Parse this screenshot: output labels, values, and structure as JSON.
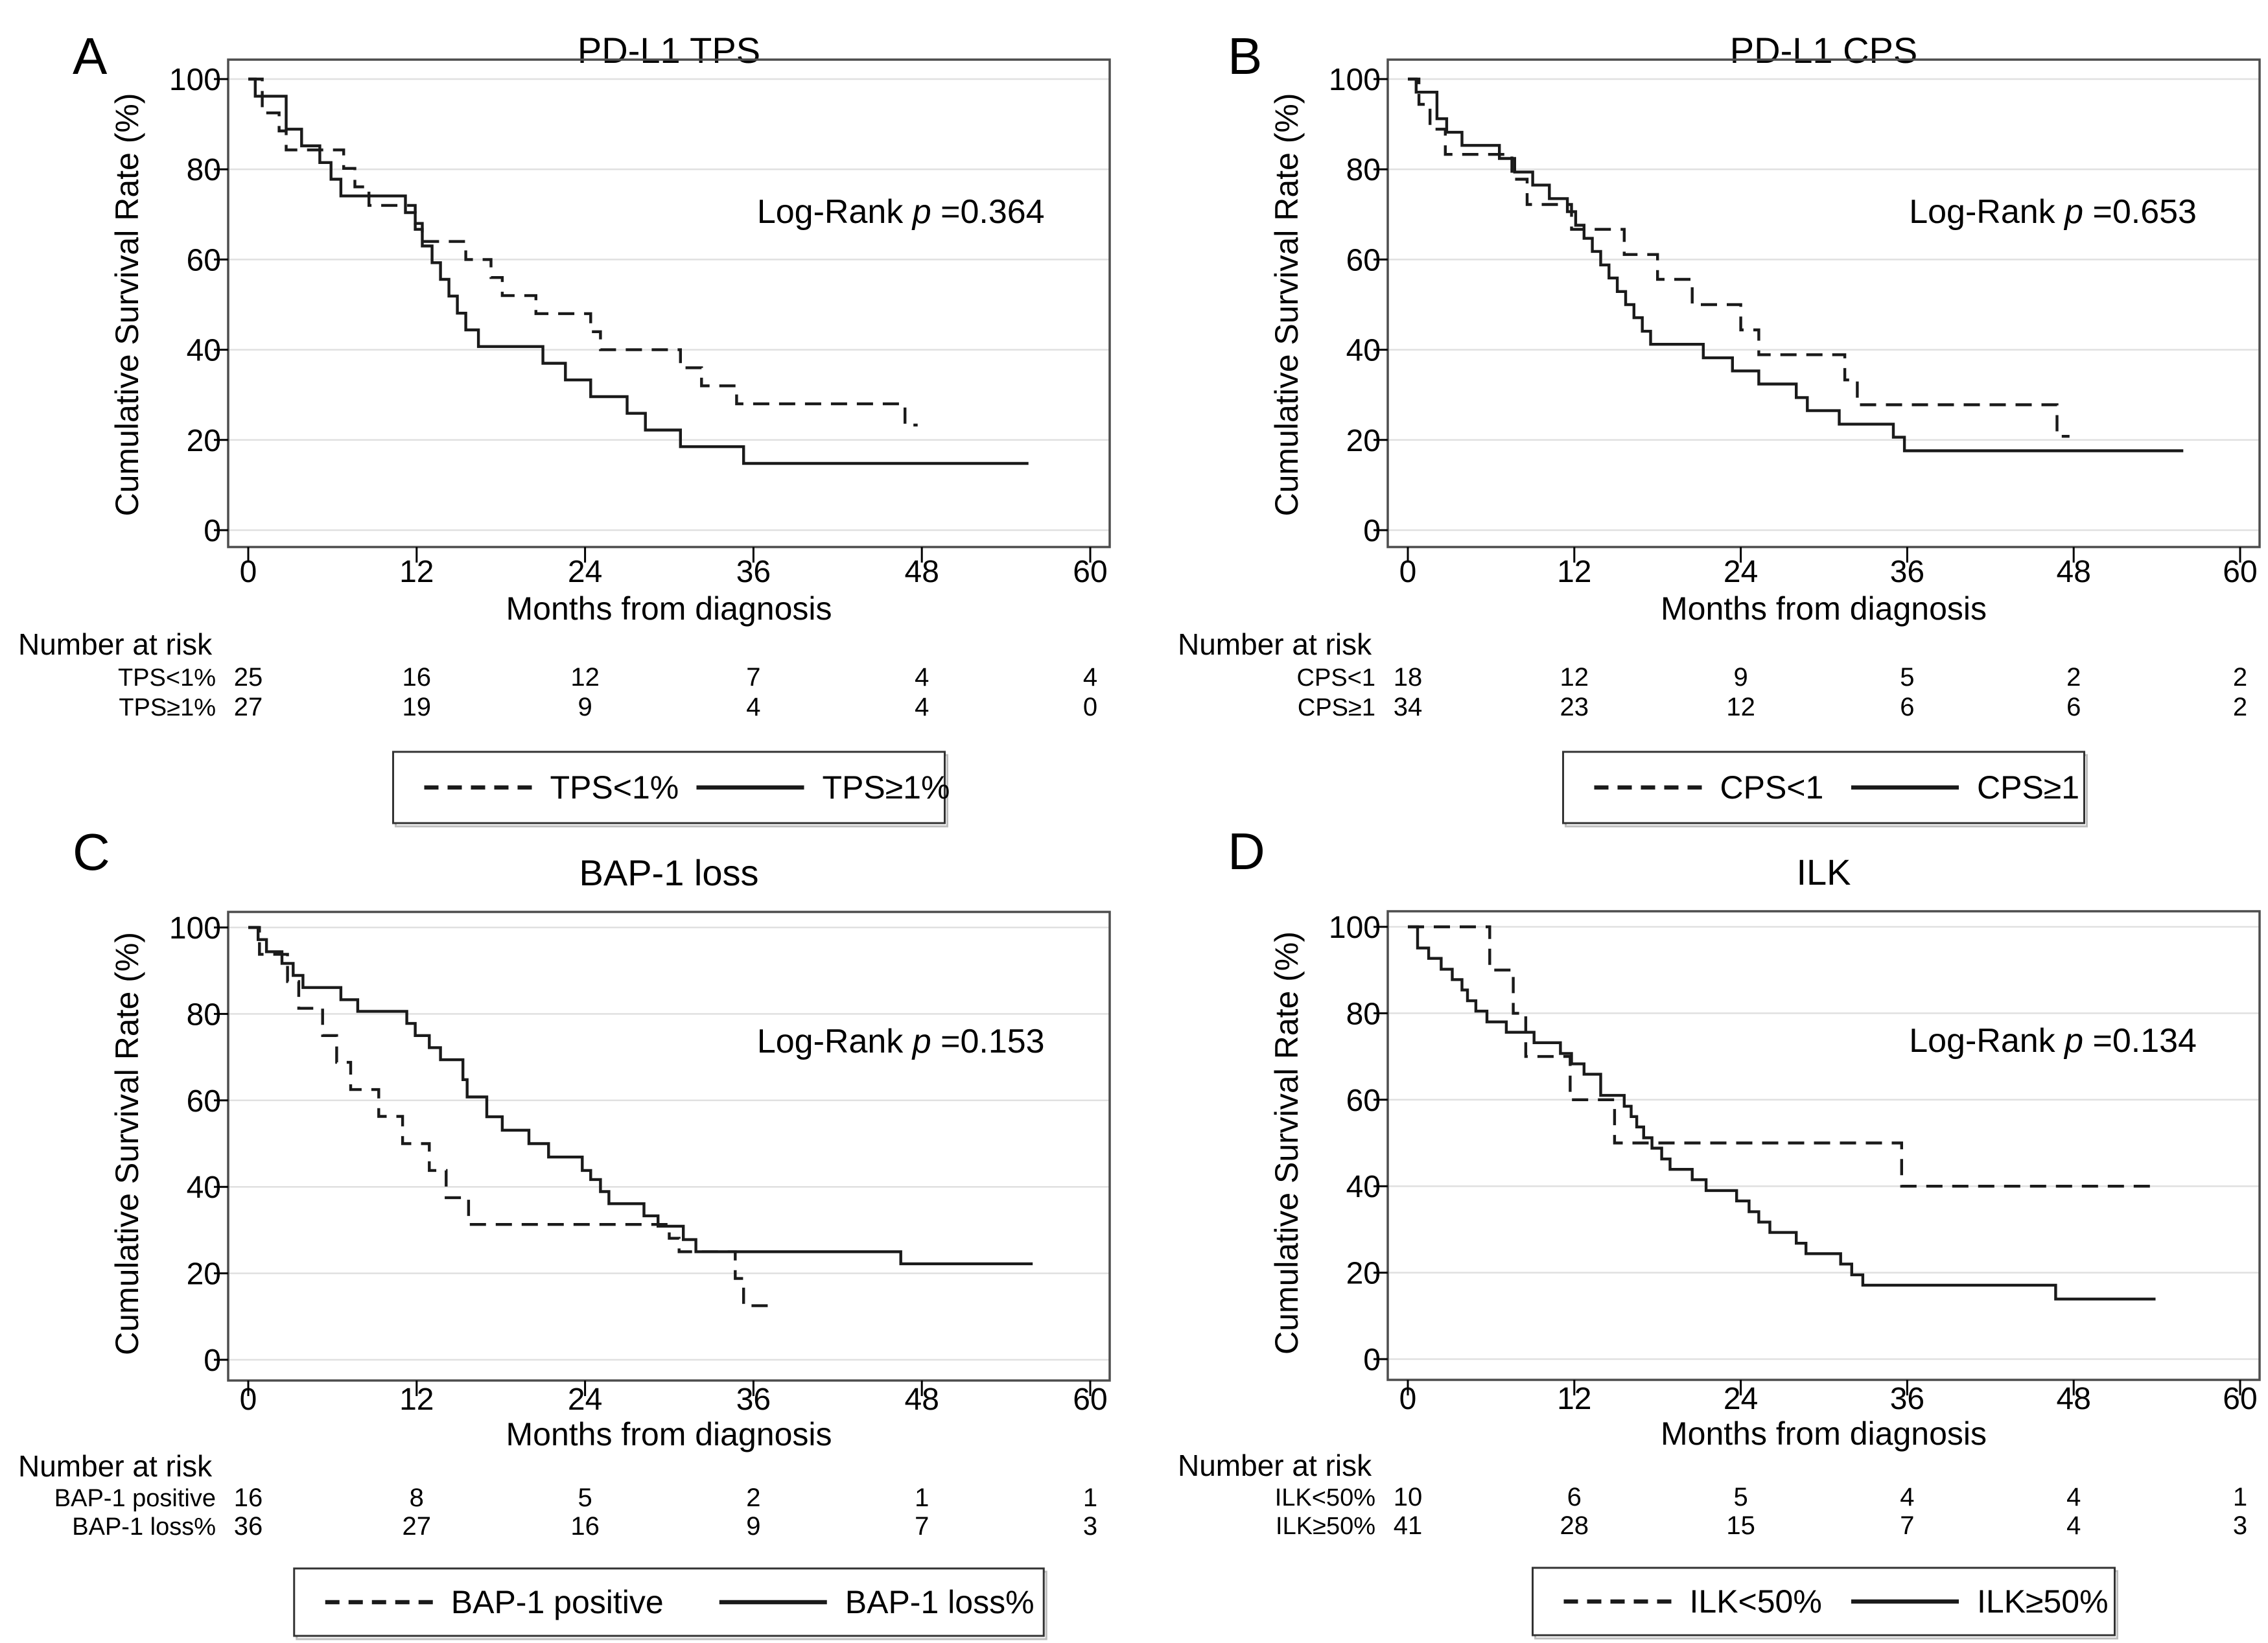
{
  "figure": {
    "background": "#ffffff",
    "colors": {
      "line": "#1a1a1a",
      "grid": "#e0e0e0",
      "frame": "#4d4d4d",
      "text": "#000000",
      "legend_border": "#333333"
    }
  },
  "chart_data": [
    {
      "id": "A",
      "type": "line",
      "subtype": "kaplan-meier-step",
      "title": "PD-L1 TPS",
      "stat": {
        "prefix": "Log-Rank ",
        "symbol": "p",
        "value": " =0.364"
      },
      "xlabel": "Months from diagnosis",
      "ylabel": "Cumulative Survival Rate (%)",
      "xticks": [
        0,
        12,
        24,
        36,
        48,
        60
      ],
      "yticks": [
        0,
        20,
        40,
        60,
        80,
        100
      ],
      "xlim": [
        0,
        62
      ],
      "ylim": [
        0,
        100
      ],
      "grid": "horizontal",
      "legend_position": "bottom",
      "series": [
        {
          "name": "TPS<1%",
          "style": "dashed",
          "end_x": 47.7,
          "points": [
            [
              0,
              100
            ],
            [
              1,
              92.5
            ],
            [
              2.2,
              88.5
            ],
            [
              2.7,
              84.3
            ],
            [
              6.8,
              80.2
            ],
            [
              7.6,
              76.1
            ],
            [
              8.6,
              72
            ],
            [
              11.9,
              68
            ],
            [
              12.4,
              64
            ],
            [
              15.5,
              60
            ],
            [
              17.3,
              56
            ],
            [
              18.1,
              52
            ],
            [
              20.5,
              48
            ],
            [
              24.4,
              44
            ],
            [
              25.1,
              40
            ],
            [
              30.8,
              36
            ],
            [
              32.3,
              32
            ],
            [
              34.8,
              28
            ],
            [
              46.8,
              23.3
            ]
          ]
        },
        {
          "name": "TPS≥1%",
          "style": "solid",
          "end_x": 55.6,
          "points": [
            [
              0,
              100
            ],
            [
              0.5,
              96.2
            ],
            [
              2.7,
              88.9
            ],
            [
              3.8,
              85.2
            ],
            [
              5.1,
              81.5
            ],
            [
              5.9,
              77.8
            ],
            [
              6.6,
              74.1
            ],
            [
              11.2,
              70.4
            ],
            [
              11.9,
              66.7
            ],
            [
              12.4,
              63
            ],
            [
              13.1,
              59.3
            ],
            [
              13.7,
              55.6
            ],
            [
              14.3,
              51.9
            ],
            [
              14.9,
              48.1
            ],
            [
              15.5,
              44.4
            ],
            [
              16.4,
              40.7
            ],
            [
              21,
              37
            ],
            [
              22.6,
              33.3
            ],
            [
              24.4,
              29.6
            ],
            [
              27,
              25.9
            ],
            [
              28.3,
              22.2
            ],
            [
              30.8,
              18.5
            ],
            [
              35.3,
              14.8
            ]
          ]
        }
      ],
      "number_at_risk": {
        "header": "Number at risk",
        "times": [
          0,
          12,
          24,
          36,
          48,
          60
        ],
        "rows": [
          {
            "label": "TPS<1%",
            "counts": [
              "25",
              "16",
              "12",
              "7",
              "4",
              "4"
            ]
          },
          {
            "label": "TPS≥1%",
            "counts": [
              "27",
              "19",
              "9",
              "4",
              "4",
              "0"
            ]
          }
        ]
      },
      "legend": [
        {
          "label": "TPS<1%",
          "style": "dashed"
        },
        {
          "label": "TPS≥1%",
          "style": "solid"
        }
      ]
    },
    {
      "id": "B",
      "type": "line",
      "subtype": "kaplan-meier-step",
      "title": "PD-L1 CPS",
      "stat": {
        "prefix": "Log-Rank ",
        "symbol": "p",
        "value": " =0.653"
      },
      "xlabel": "Months from diagnosis",
      "ylabel": "Cumulative Survival Rate (%)",
      "xticks": [
        0,
        12,
        24,
        36,
        48,
        60
      ],
      "yticks": [
        0,
        20,
        40,
        60,
        80,
        100
      ],
      "xlim": [
        0,
        62
      ],
      "ylim": [
        0,
        100
      ],
      "grid": "horizontal",
      "legend_position": "bottom",
      "series": [
        {
          "name": "CPS<1",
          "style": "dashed",
          "end_x": 47.7,
          "points": [
            [
              0,
              100
            ],
            [
              0.8,
              94.4
            ],
            [
              1.6,
              88.9
            ],
            [
              2.7,
              83.3
            ],
            [
              7.5,
              77.8
            ],
            [
              8.6,
              72.2
            ],
            [
              11.8,
              66.7
            ],
            [
              15.6,
              61.1
            ],
            [
              18,
              55.6
            ],
            [
              20.5,
              50
            ],
            [
              24,
              44.4
            ],
            [
              25.3,
              38.9
            ],
            [
              31.5,
              33.3
            ],
            [
              32.4,
              27.8
            ],
            [
              46.8,
              20.8
            ]
          ]
        },
        {
          "name": "CPS≥1",
          "style": "solid",
          "end_x": 55.9,
          "points": [
            [
              0,
              100
            ],
            [
              0.6,
              97.1
            ],
            [
              2.1,
              91.2
            ],
            [
              2.8,
              88.2
            ],
            [
              3.9,
              85.3
            ],
            [
              6.6,
              82.4
            ],
            [
              7.7,
              79.4
            ],
            [
              9,
              76.5
            ],
            [
              10.2,
              73.5
            ],
            [
              11.5,
              70.6
            ],
            [
              12.1,
              67.6
            ],
            [
              12.7,
              64.7
            ],
            [
              13.3,
              61.8
            ],
            [
              13.9,
              58.8
            ],
            [
              14.5,
              55.9
            ],
            [
              15.1,
              52.9
            ],
            [
              15.7,
              50
            ],
            [
              16.3,
              47.1
            ],
            [
              16.9,
              44.1
            ],
            [
              17.5,
              41.2
            ],
            [
              21.3,
              38.2
            ],
            [
              23.4,
              35.3
            ],
            [
              25.3,
              32.4
            ],
            [
              28,
              29.4
            ],
            [
              28.8,
              26.5
            ],
            [
              31.1,
              23.5
            ],
            [
              35,
              20.6
            ],
            [
              35.8,
              17.6
            ]
          ]
        }
      ],
      "number_at_risk": {
        "header": "Number at risk",
        "times": [
          0,
          12,
          24,
          36,
          48,
          60
        ],
        "rows": [
          {
            "label": "CPS<1",
            "counts": [
              "18",
              "12",
              "9",
              "5",
              "2",
              "2"
            ]
          },
          {
            "label": "CPS≥1",
            "counts": [
              "34",
              "23",
              "12",
              "6",
              "6",
              "2"
            ]
          }
        ]
      },
      "legend": [
        {
          "label": "CPS<1",
          "style": "dashed"
        },
        {
          "label": "CPS≥1",
          "style": "solid"
        }
      ]
    },
    {
      "id": "C",
      "type": "line",
      "subtype": "kaplan-meier-step",
      "title": "BAP-1 loss",
      "stat": {
        "prefix": "Log-Rank ",
        "symbol": "p",
        "value": " =0.153"
      },
      "xlabel": "Months from diagnosis",
      "ylabel": "Cumulative Survival Rate (%)",
      "xticks": [
        0,
        12,
        24,
        36,
        48,
        60
      ],
      "yticks": [
        0,
        20,
        40,
        60,
        80,
        100
      ],
      "xlim": [
        0,
        62
      ],
      "ylim": [
        0,
        100
      ],
      "grid": "horizontal",
      "legend_position": "bottom",
      "series": [
        {
          "name": "BAP-1 positive",
          "style": "dashed",
          "end_x": 37.4,
          "points": [
            [
              0,
              100
            ],
            [
              0.8,
              93.8
            ],
            [
              2.8,
              87.5
            ],
            [
              3.6,
              81.3
            ],
            [
              5.3,
              75
            ],
            [
              6.3,
              68.8
            ],
            [
              7.3,
              62.5
            ],
            [
              9.3,
              56.3
            ],
            [
              11,
              50
            ],
            [
              12.9,
              43.8
            ],
            [
              14.1,
              37.5
            ],
            [
              15.7,
              31.3
            ],
            [
              30,
              28.1
            ],
            [
              30.7,
              25
            ],
            [
              34.7,
              18.8
            ],
            [
              35.3,
              12.5
            ]
          ]
        },
        {
          "name": "BAP-1 loss%",
          "style": "solid",
          "end_x": 55.9,
          "points": [
            [
              0,
              100
            ],
            [
              0.7,
              97.2
            ],
            [
              1.3,
              94.4
            ],
            [
              2.4,
              91.7
            ],
            [
              3.2,
              88.9
            ],
            [
              3.9,
              86.1
            ],
            [
              6.6,
              83.3
            ],
            [
              7.8,
              80.6
            ],
            [
              11.3,
              77.8
            ],
            [
              11.9,
              75
            ],
            [
              12.9,
              72.2
            ],
            [
              13.7,
              69.4
            ],
            [
              15.3,
              64.8
            ],
            [
              15.6,
              60.8
            ],
            [
              17,
              56.2
            ],
            [
              18.1,
              53.1
            ],
            [
              20,
              50
            ],
            [
              21.4,
              46.9
            ],
            [
              23.8,
              43.8
            ],
            [
              24.4,
              41.7
            ],
            [
              25.1,
              38.9
            ],
            [
              25.7,
              36.1
            ],
            [
              28.2,
              33.3
            ],
            [
              29.2,
              30.9
            ],
            [
              31,
              27.8
            ],
            [
              31.9,
              25
            ],
            [
              46.5,
              22.2
            ]
          ]
        }
      ],
      "number_at_risk": {
        "header": "Number at risk",
        "times": [
          0,
          12,
          24,
          36,
          48,
          60
        ],
        "rows": [
          {
            "label": "BAP-1 positive",
            "counts": [
              "16",
              "8",
              "5",
              "2",
              "1",
              "1"
            ]
          },
          {
            "label": "BAP-1 loss%",
            "counts": [
              "36",
              "27",
              "16",
              "9",
              "7",
              "3"
            ]
          }
        ]
      },
      "legend": [
        {
          "label": "BAP-1 positive",
          "style": "dashed"
        },
        {
          "label": "BAP-1 loss%",
          "style": "solid"
        }
      ]
    },
    {
      "id": "D",
      "type": "line",
      "subtype": "kaplan-meier-step",
      "title": "ILK",
      "stat": {
        "prefix": "Log-Rank ",
        "symbol": "p",
        "value": " =0.134"
      },
      "xlabel": "Months from diagnosis",
      "ylabel": "Cumulative Survival Rate (%)",
      "xticks": [
        0,
        12,
        24,
        36,
        48,
        60
      ],
      "yticks": [
        0,
        20,
        40,
        60,
        80,
        100
      ],
      "xlim": [
        0,
        62
      ],
      "ylim": [
        0,
        100
      ],
      "grid": "horizontal",
      "legend_position": "bottom",
      "series": [
        {
          "name": "ILK<50%",
          "style": "dashed",
          "end_x": 53.9,
          "points": [
            [
              0,
              100
            ],
            [
              5.9,
              90
            ],
            [
              7.6,
              80
            ],
            [
              8.5,
              70
            ],
            [
              11.7,
              60
            ],
            [
              14.9,
              50
            ],
            [
              35.6,
              40
            ]
          ]
        },
        {
          "name": "ILK≥50%",
          "style": "solid",
          "end_x": 53.9,
          "points": [
            [
              0,
              100
            ],
            [
              0.7,
              95.1
            ],
            [
              1.5,
              92.7
            ],
            [
              2.4,
              90.2
            ],
            [
              3.2,
              87.8
            ],
            [
              3.9,
              85.4
            ],
            [
              4.3,
              82.9
            ],
            [
              4.9,
              80.5
            ],
            [
              5.7,
              78
            ],
            [
              7.1,
              75.6
            ],
            [
              9.1,
              73.2
            ],
            [
              11,
              70.7
            ],
            [
              11.8,
              68.3
            ],
            [
              12.7,
              65.9
            ],
            [
              13.9,
              61
            ],
            [
              15.6,
              58.5
            ],
            [
              16.1,
              56.1
            ],
            [
              16.5,
              53.7
            ],
            [
              17,
              51.2
            ],
            [
              17.6,
              48.8
            ],
            [
              18.3,
              46.3
            ],
            [
              18.9,
              43.9
            ],
            [
              20.5,
              41.5
            ],
            [
              21.5,
              39
            ],
            [
              23.7,
              36.6
            ],
            [
              24.6,
              34.1
            ],
            [
              25.3,
              31.7
            ],
            [
              26.1,
              29.3
            ],
            [
              28,
              26.8
            ],
            [
              28.7,
              24.4
            ],
            [
              31.2,
              22
            ],
            [
              32,
              19.5
            ],
            [
              32.8,
              17.1
            ],
            [
              46.7,
              13.9
            ]
          ]
        }
      ],
      "number_at_risk": {
        "header": "Number at risk",
        "times": [
          0,
          12,
          24,
          36,
          48,
          60
        ],
        "rows": [
          {
            "label": "ILK<50%",
            "counts": [
              "10",
              "6",
              "5",
              "4",
              "4",
              "1"
            ]
          },
          {
            "label": "ILK≥50%",
            "counts": [
              "41",
              "28",
              "15",
              "7",
              "4",
              "3"
            ]
          }
        ]
      },
      "legend": [
        {
          "label": "ILK<50%",
          "style": "dashed"
        },
        {
          "label": "ILK≥50%",
          "style": "solid"
        }
      ]
    }
  ]
}
